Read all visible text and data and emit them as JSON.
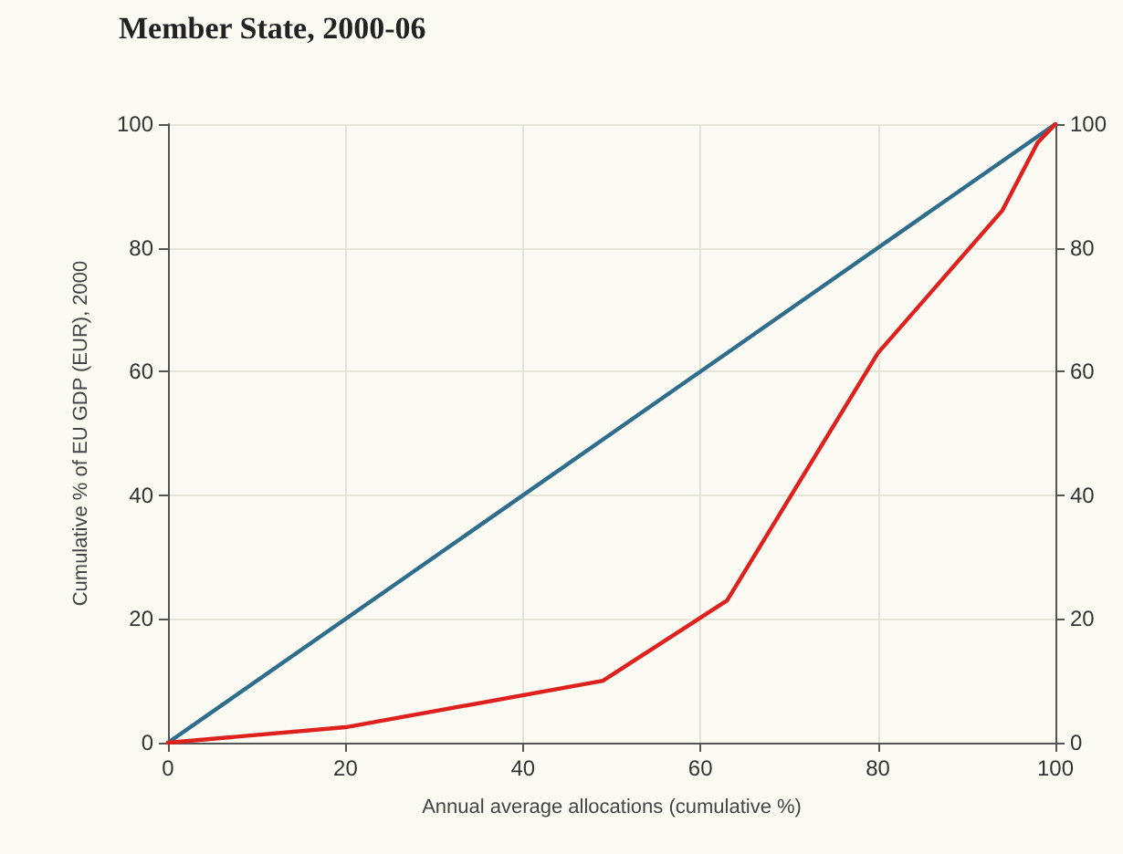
{
  "chart_data": {
    "type": "line",
    "title": "Member State, 2000-06",
    "xlabel": "Annual average allocations (cumulative %)",
    "ylabel": "Cumulative % of EU GDP (EUR), 2000",
    "series": [
      {
        "color": "#2e6d8c",
        "x": [
          0,
          100
        ],
        "values": [
          0,
          100
        ]
      },
      {
        "color": "#e0201c",
        "x": [
          0,
          20,
          49,
          63,
          80,
          94,
          98,
          100
        ],
        "values": [
          0,
          2.5,
          10,
          23,
          63,
          86,
          97,
          100
        ]
      }
    ],
    "xlim": [
      0,
      100
    ],
    "xticks": [
      0,
      20,
      40,
      60,
      80,
      100
    ],
    "ylim": [
      0,
      100
    ],
    "yticks": [
      0,
      20,
      40,
      60,
      80,
      100
    ],
    "y2lim": [
      0,
      100
    ],
    "y2ticks": [
      0,
      20,
      40,
      60,
      80,
      100
    ],
    "grid": true,
    "marker": "none",
    "line_style": "solid"
  }
}
